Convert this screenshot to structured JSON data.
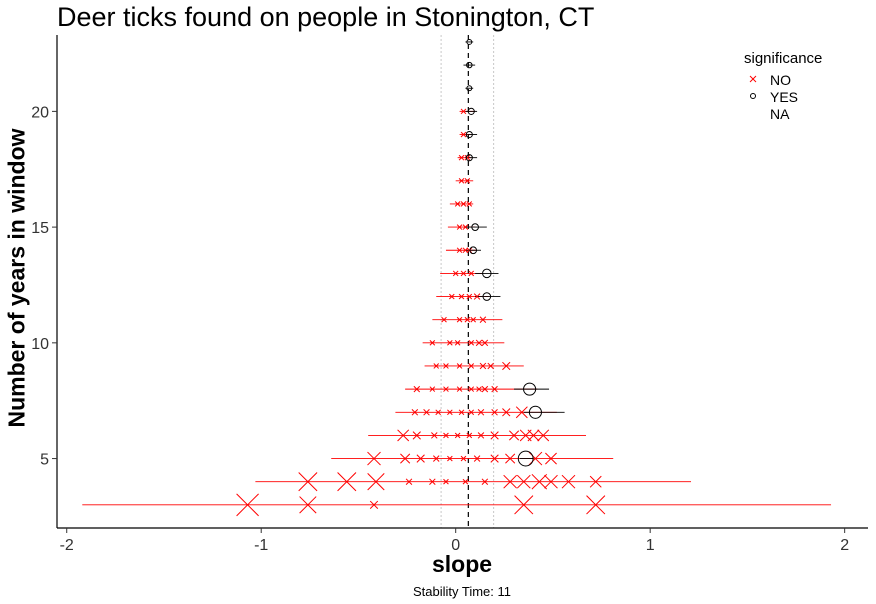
{
  "chart_data": {
    "type": "scatter",
    "title": "Deer ticks found on people in Stonington, CT",
    "xlabel": "slope",
    "ylabel": "Number of years in window",
    "caption": "Stability Time: 11",
    "xlim": [
      -2.05,
      2.12
    ],
    "ylim": [
      2.0,
      23.3
    ],
    "x_ticks": [
      -2,
      -1,
      0,
      1,
      2
    ],
    "y_ticks": [
      5,
      10,
      15,
      20
    ],
    "grid": false,
    "reference_lines": {
      "overall_slope": 0.065,
      "slope_bounds": [
        -0.075,
        0.195
      ]
    },
    "legend": {
      "title": "significance",
      "position": "top-right",
      "entries": [
        {
          "label": "NO",
          "shape": "x",
          "color": "#ff0000"
        },
        {
          "label": "YES",
          "shape": "circle",
          "color": "#000000"
        },
        {
          "label": "NA",
          "shape": "none",
          "color": "#000000"
        }
      ]
    },
    "error_bars": [
      {
        "window": 3,
        "xmin": -1.92,
        "xmax": 1.93,
        "sig": "NO"
      },
      {
        "window": 4,
        "xmin": -1.03,
        "xmax": 1.21,
        "sig": "NO"
      },
      {
        "window": 5,
        "xmin": -0.64,
        "xmax": 0.81,
        "sig": "NO"
      },
      {
        "window": 5,
        "xmin": 0.33,
        "xmax": 0.4,
        "sig": "YES"
      },
      {
        "window": 6,
        "xmin": -0.45,
        "xmax": 0.67,
        "sig": "NO"
      },
      {
        "window": 7,
        "xmin": -0.31,
        "xmax": 0.52,
        "sig": "NO"
      },
      {
        "window": 7,
        "xmin": 0.35,
        "xmax": 0.56,
        "sig": "YES"
      },
      {
        "window": 8,
        "xmin": -0.26,
        "xmax": 0.42,
        "sig": "NO"
      },
      {
        "window": 8,
        "xmin": 0.3,
        "xmax": 0.48,
        "sig": "YES"
      },
      {
        "window": 9,
        "xmin": -0.16,
        "xmax": 0.35,
        "sig": "NO"
      },
      {
        "window": 10,
        "xmin": -0.17,
        "xmax": 0.25,
        "sig": "NO"
      },
      {
        "window": 11,
        "xmin": -0.12,
        "xmax": 0.24,
        "sig": "NO"
      },
      {
        "window": 12,
        "xmin": -0.1,
        "xmax": 0.17,
        "sig": "NO"
      },
      {
        "window": 12,
        "xmin": 0.1,
        "xmax": 0.23,
        "sig": "YES"
      },
      {
        "window": 13,
        "xmin": -0.08,
        "xmax": 0.14,
        "sig": "NO"
      },
      {
        "window": 13,
        "xmin": 0.1,
        "xmax": 0.22,
        "sig": "YES"
      },
      {
        "window": 14,
        "xmin": -0.05,
        "xmax": 0.11,
        "sig": "NO"
      },
      {
        "window": 14,
        "xmin": 0.05,
        "xmax": 0.13,
        "sig": "YES"
      },
      {
        "window": 15,
        "xmin": -0.04,
        "xmax": 0.1,
        "sig": "NO"
      },
      {
        "window": 15,
        "xmin": 0.05,
        "xmax": 0.16,
        "sig": "YES"
      },
      {
        "window": 16,
        "xmin": -0.03,
        "xmax": 0.09,
        "sig": "NO"
      },
      {
        "window": 17,
        "xmin": 0.0,
        "xmax": 0.09,
        "sig": "NO"
      },
      {
        "window": 18,
        "xmin": 0.01,
        "xmax": 0.08,
        "sig": "NO"
      },
      {
        "window": 18,
        "xmin": 0.05,
        "xmax": 0.11,
        "sig": "YES"
      },
      {
        "window": 19,
        "xmin": 0.02,
        "xmax": 0.08,
        "sig": "NO"
      },
      {
        "window": 19,
        "xmin": 0.06,
        "xmax": 0.11,
        "sig": "YES"
      },
      {
        "window": 20,
        "xmin": 0.02,
        "xmax": 0.1,
        "sig": "NO"
      },
      {
        "window": 20,
        "xmin": 0.05,
        "xmax": 0.11,
        "sig": "YES"
      },
      {
        "window": 21,
        "xmin": 0.05,
        "xmax": 0.09,
        "sig": "YES"
      },
      {
        "window": 22,
        "xmin": 0.04,
        "xmax": 0.1,
        "sig": "YES"
      },
      {
        "window": 23,
        "xmin": 0.05,
        "xmax": 0.09,
        "sig": "YES"
      }
    ],
    "points": [
      {
        "window": 3,
        "slope": -1.07,
        "sig": "NO",
        "magnitude": 1.0
      },
      {
        "window": 3,
        "slope": -0.76,
        "sig": "NO",
        "magnitude": 0.7
      },
      {
        "window": 3,
        "slope": -0.42,
        "sig": "NO",
        "magnitude": 0.2
      },
      {
        "window": 3,
        "slope": 0.35,
        "sig": "NO",
        "magnitude": 0.8
      },
      {
        "window": 3,
        "slope": 0.72,
        "sig": "NO",
        "magnitude": 0.8
      },
      {
        "window": 4,
        "slope": -0.76,
        "sig": "NO",
        "magnitude": 0.8
      },
      {
        "window": 4,
        "slope": -0.56,
        "sig": "NO",
        "magnitude": 0.8
      },
      {
        "window": 4,
        "slope": -0.41,
        "sig": "NO",
        "magnitude": 0.7
      },
      {
        "window": 4,
        "slope": -0.24,
        "sig": "NO",
        "magnitude": 0.1
      },
      {
        "window": 4,
        "slope": -0.12,
        "sig": "NO",
        "magnitude": 0.1
      },
      {
        "window": 4,
        "slope": -0.05,
        "sig": "NO",
        "magnitude": 0.05
      },
      {
        "window": 4,
        "slope": 0.05,
        "sig": "NO",
        "magnitude": 0.05
      },
      {
        "window": 4,
        "slope": 0.15,
        "sig": "NO",
        "magnitude": 0.1
      },
      {
        "window": 4,
        "slope": 0.28,
        "sig": "NO",
        "magnitude": 0.5
      },
      {
        "window": 4,
        "slope": 0.35,
        "sig": "NO",
        "magnitude": 0.5
      },
      {
        "window": 4,
        "slope": 0.43,
        "sig": "NO",
        "magnitude": 0.6
      },
      {
        "window": 4,
        "slope": 0.49,
        "sig": "NO",
        "magnitude": 0.5
      },
      {
        "window": 4,
        "slope": 0.58,
        "sig": "NO",
        "magnitude": 0.5
      },
      {
        "window": 4,
        "slope": 0.72,
        "sig": "NO",
        "magnitude": 0.4
      },
      {
        "window": 5,
        "slope": -0.42,
        "sig": "NO",
        "magnitude": 0.5
      },
      {
        "window": 5,
        "slope": -0.26,
        "sig": "NO",
        "magnitude": 0.3
      },
      {
        "window": 5,
        "slope": -0.18,
        "sig": "NO",
        "magnitude": 0.2
      },
      {
        "window": 5,
        "slope": -0.1,
        "sig": "NO",
        "magnitude": 0.1
      },
      {
        "window": 5,
        "slope": -0.03,
        "sig": "NO",
        "magnitude": 0.05
      },
      {
        "window": 5,
        "slope": 0.04,
        "sig": "NO",
        "magnitude": 0.05
      },
      {
        "window": 5,
        "slope": 0.11,
        "sig": "NO",
        "magnitude": 0.1
      },
      {
        "window": 5,
        "slope": 0.2,
        "sig": "NO",
        "magnitude": 0.2
      },
      {
        "window": 5,
        "slope": 0.28,
        "sig": "NO",
        "magnitude": 0.3
      },
      {
        "window": 5,
        "slope": 0.41,
        "sig": "NO",
        "magnitude": 0.5
      },
      {
        "window": 5,
        "slope": 0.49,
        "sig": "NO",
        "magnitude": 0.4
      },
      {
        "window": 5,
        "slope": 0.36,
        "sig": "YES",
        "magnitude": 0.6
      },
      {
        "window": 6,
        "slope": -0.27,
        "sig": "NO",
        "magnitude": 0.4
      },
      {
        "window": 6,
        "slope": -0.2,
        "sig": "NO",
        "magnitude": 0.2
      },
      {
        "window": 6,
        "slope": -0.11,
        "sig": "NO",
        "magnitude": 0.1
      },
      {
        "window": 6,
        "slope": -0.05,
        "sig": "NO",
        "magnitude": 0.05
      },
      {
        "window": 6,
        "slope": 0.01,
        "sig": "NO",
        "magnitude": 0.05
      },
      {
        "window": 6,
        "slope": 0.07,
        "sig": "NO",
        "magnitude": 0.05
      },
      {
        "window": 6,
        "slope": 0.13,
        "sig": "NO",
        "magnitude": 0.1
      },
      {
        "window": 6,
        "slope": 0.2,
        "sig": "NO",
        "magnitude": 0.2
      },
      {
        "window": 6,
        "slope": 0.3,
        "sig": "NO",
        "magnitude": 0.3
      },
      {
        "window": 6,
        "slope": 0.36,
        "sig": "NO",
        "magnitude": 0.4
      },
      {
        "window": 6,
        "slope": 0.4,
        "sig": "NO",
        "magnitude": 0.4
      },
      {
        "window": 6,
        "slope": 0.45,
        "sig": "NO",
        "magnitude": 0.4
      },
      {
        "window": 7,
        "slope": -0.21,
        "sig": "NO",
        "magnitude": 0.1
      },
      {
        "window": 7,
        "slope": -0.15,
        "sig": "NO",
        "magnitude": 0.1
      },
      {
        "window": 7,
        "slope": -0.09,
        "sig": "NO",
        "magnitude": 0.05
      },
      {
        "window": 7,
        "slope": -0.03,
        "sig": "NO",
        "magnitude": 0.05
      },
      {
        "window": 7,
        "slope": 0.03,
        "sig": "NO",
        "magnitude": 0.05
      },
      {
        "window": 7,
        "slope": 0.08,
        "sig": "NO",
        "magnitude": 0.05
      },
      {
        "window": 7,
        "slope": 0.13,
        "sig": "NO",
        "magnitude": 0.1
      },
      {
        "window": 7,
        "slope": 0.2,
        "sig": "NO",
        "magnitude": 0.1
      },
      {
        "window": 7,
        "slope": 0.26,
        "sig": "NO",
        "magnitude": 0.2
      },
      {
        "window": 7,
        "slope": 0.34,
        "sig": "NO",
        "magnitude": 0.4
      },
      {
        "window": 7,
        "slope": 0.41,
        "sig": "YES",
        "magnitude": 0.45
      },
      {
        "window": 8,
        "slope": -0.2,
        "sig": "NO",
        "magnitude": 0.1
      },
      {
        "window": 8,
        "slope": -0.12,
        "sig": "NO",
        "magnitude": 0.05
      },
      {
        "window": 8,
        "slope": -0.05,
        "sig": "NO",
        "magnitude": 0.05
      },
      {
        "window": 8,
        "slope": 0.02,
        "sig": "NO",
        "magnitude": 0.05
      },
      {
        "window": 8,
        "slope": 0.08,
        "sig": "NO",
        "magnitude": 0.05
      },
      {
        "window": 8,
        "slope": 0.12,
        "sig": "NO",
        "magnitude": 0.05
      },
      {
        "window": 8,
        "slope": 0.15,
        "sig": "NO",
        "magnitude": 0.1
      },
      {
        "window": 8,
        "slope": 0.2,
        "sig": "NO",
        "magnitude": 0.1
      },
      {
        "window": 8,
        "slope": 0.38,
        "sig": "YES",
        "magnitude": 0.45
      },
      {
        "window": 9,
        "slope": -0.1,
        "sig": "NO",
        "magnitude": 0.05
      },
      {
        "window": 9,
        "slope": -0.05,
        "sig": "NO",
        "magnitude": 0.05
      },
      {
        "window": 9,
        "slope": 0.02,
        "sig": "NO",
        "magnitude": 0.05
      },
      {
        "window": 9,
        "slope": 0.08,
        "sig": "NO",
        "magnitude": 0.05
      },
      {
        "window": 9,
        "slope": 0.14,
        "sig": "NO",
        "magnitude": 0.1
      },
      {
        "window": 9,
        "slope": 0.18,
        "sig": "NO",
        "magnitude": 0.1
      },
      {
        "window": 9,
        "slope": 0.26,
        "sig": "NO",
        "magnitude": 0.2
      },
      {
        "window": 10,
        "slope": -0.12,
        "sig": "NO",
        "magnitude": 0.05
      },
      {
        "window": 10,
        "slope": -0.03,
        "sig": "NO",
        "magnitude": 0.05
      },
      {
        "window": 10,
        "slope": 0.01,
        "sig": "NO",
        "magnitude": 0.05
      },
      {
        "window": 10,
        "slope": 0.08,
        "sig": "NO",
        "magnitude": 0.05
      },
      {
        "window": 10,
        "slope": 0.12,
        "sig": "NO",
        "magnitude": 0.1
      },
      {
        "window": 10,
        "slope": 0.15,
        "sig": "NO",
        "magnitude": 0.1
      },
      {
        "window": 11,
        "slope": -0.06,
        "sig": "NO",
        "magnitude": 0.05
      },
      {
        "window": 11,
        "slope": 0.02,
        "sig": "NO",
        "magnitude": 0.05
      },
      {
        "window": 11,
        "slope": 0.06,
        "sig": "NO",
        "magnitude": 0.05
      },
      {
        "window": 11,
        "slope": 0.09,
        "sig": "NO",
        "magnitude": 0.05
      },
      {
        "window": 11,
        "slope": 0.14,
        "sig": "NO",
        "magnitude": 0.1
      },
      {
        "window": 12,
        "slope": -0.02,
        "sig": "NO",
        "magnitude": 0.05
      },
      {
        "window": 12,
        "slope": 0.03,
        "sig": "NO",
        "magnitude": 0.05
      },
      {
        "window": 12,
        "slope": 0.07,
        "sig": "NO",
        "magnitude": 0.05
      },
      {
        "window": 12,
        "slope": 0.11,
        "sig": "NO",
        "magnitude": 0.1
      },
      {
        "window": 12,
        "slope": 0.16,
        "sig": "YES",
        "magnitude": 0.2
      },
      {
        "window": 13,
        "slope": 0.0,
        "sig": "NO",
        "magnitude": 0.05
      },
      {
        "window": 13,
        "slope": 0.04,
        "sig": "NO",
        "magnitude": 0.05
      },
      {
        "window": 13,
        "slope": 0.08,
        "sig": "NO",
        "magnitude": 0.05
      },
      {
        "window": 13,
        "slope": 0.16,
        "sig": "YES",
        "magnitude": 0.25
      },
      {
        "window": 14,
        "slope": 0.02,
        "sig": "NO",
        "magnitude": 0.05
      },
      {
        "window": 14,
        "slope": 0.05,
        "sig": "NO",
        "magnitude": 0.05
      },
      {
        "window": 14,
        "slope": 0.07,
        "sig": "NO",
        "magnitude": 0.05
      },
      {
        "window": 14,
        "slope": 0.09,
        "sig": "YES",
        "magnitude": 0.15
      },
      {
        "window": 15,
        "slope": 0.02,
        "sig": "NO",
        "magnitude": 0.05
      },
      {
        "window": 15,
        "slope": 0.05,
        "sig": "NO",
        "magnitude": 0.05
      },
      {
        "window": 15,
        "slope": 0.1,
        "sig": "YES",
        "magnitude": 0.15
      },
      {
        "window": 16,
        "slope": 0.01,
        "sig": "NO",
        "magnitude": 0.05
      },
      {
        "window": 16,
        "slope": 0.04,
        "sig": "NO",
        "magnitude": 0.05
      },
      {
        "window": 16,
        "slope": 0.07,
        "sig": "NO",
        "magnitude": 0.05
      },
      {
        "window": 17,
        "slope": 0.03,
        "sig": "NO",
        "magnitude": 0.05
      },
      {
        "window": 17,
        "slope": 0.06,
        "sig": "NO",
        "magnitude": 0.05
      },
      {
        "window": 18,
        "slope": 0.03,
        "sig": "NO",
        "magnitude": 0.05
      },
      {
        "window": 18,
        "slope": 0.06,
        "sig": "NO",
        "magnitude": 0.05
      },
      {
        "window": 18,
        "slope": 0.07,
        "sig": "YES",
        "magnitude": 0.12
      },
      {
        "window": 19,
        "slope": 0.04,
        "sig": "NO",
        "magnitude": 0.05
      },
      {
        "window": 19,
        "slope": 0.07,
        "sig": "YES",
        "magnitude": 0.12
      },
      {
        "window": 20,
        "slope": 0.04,
        "sig": "NO",
        "magnitude": 0.05
      },
      {
        "window": 20,
        "slope": 0.08,
        "sig": "YES",
        "magnitude": 0.12
      },
      {
        "window": 21,
        "slope": 0.07,
        "sig": "YES",
        "magnitude": 0.05
      },
      {
        "window": 22,
        "slope": 0.07,
        "sig": "YES",
        "magnitude": 0.08
      },
      {
        "window": 23,
        "slope": 0.07,
        "sig": "YES",
        "magnitude": 0.05
      }
    ]
  }
}
